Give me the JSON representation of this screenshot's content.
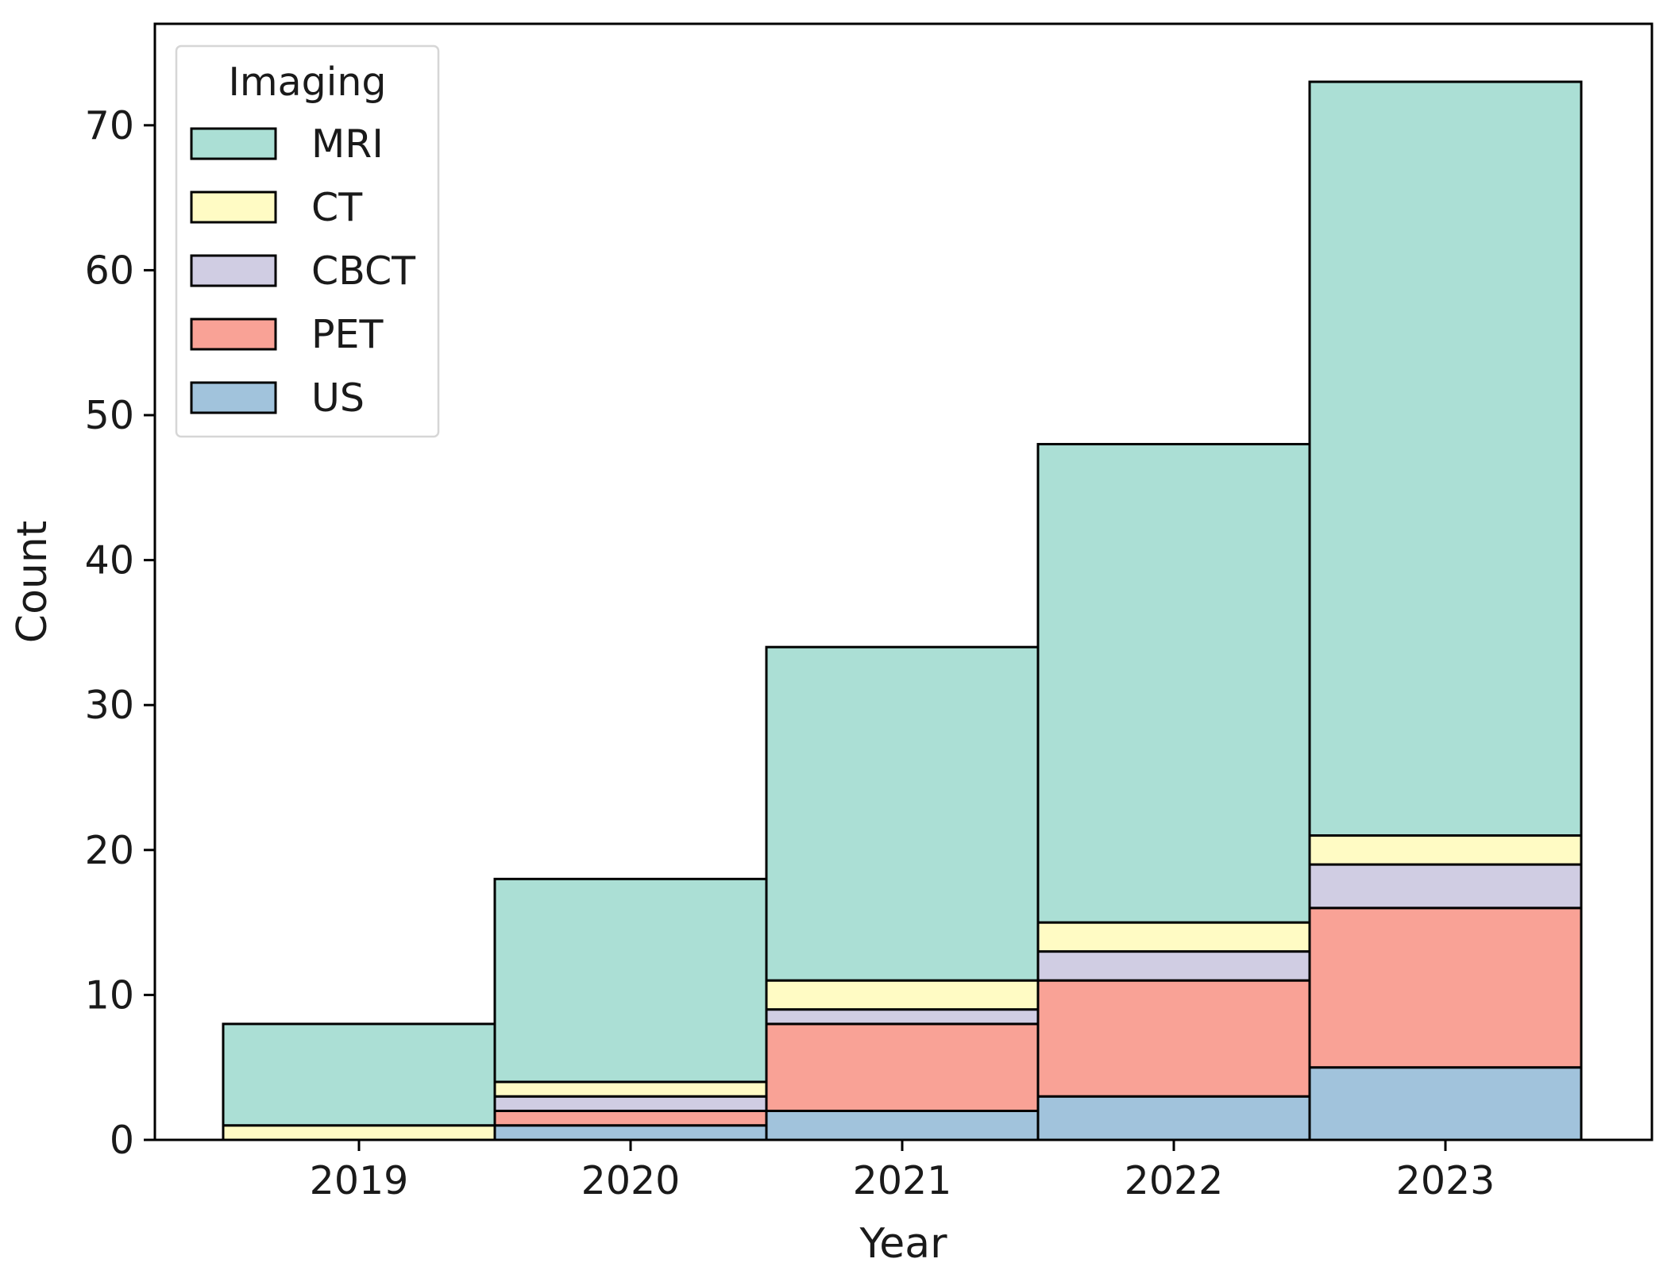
{
  "chart_data": {
    "type": "bar",
    "stacked": true,
    "categories": [
      "2019",
      "2020",
      "2021",
      "2022",
      "2023"
    ],
    "series": [
      {
        "name": "US",
        "color": "#a1c3dc",
        "values": [
          0,
          1,
          2,
          3,
          5
        ]
      },
      {
        "name": "PET",
        "color": "#f9a296",
        "values": [
          0,
          1,
          6,
          8,
          11
        ]
      },
      {
        "name": "CBCT",
        "color": "#d0cde3",
        "values": [
          0,
          1,
          1,
          2,
          3
        ]
      },
      {
        "name": "CT",
        "color": "#fffbc4",
        "values": [
          1,
          1,
          2,
          2,
          2
        ]
      },
      {
        "name": "MRI",
        "color": "#abdfd5",
        "values": [
          7,
          14,
          23,
          33,
          52
        ]
      }
    ],
    "xlabel": "Year",
    "ylabel": "Count",
    "ylim": [
      0,
      77
    ],
    "yticks": [
      0,
      10,
      20,
      30,
      40,
      50,
      60,
      70
    ],
    "grid": false,
    "legend": {
      "title": "Imaging",
      "placement": "top-left",
      "order": [
        "MRI",
        "CT",
        "CBCT",
        "PET",
        "US"
      ]
    }
  }
}
